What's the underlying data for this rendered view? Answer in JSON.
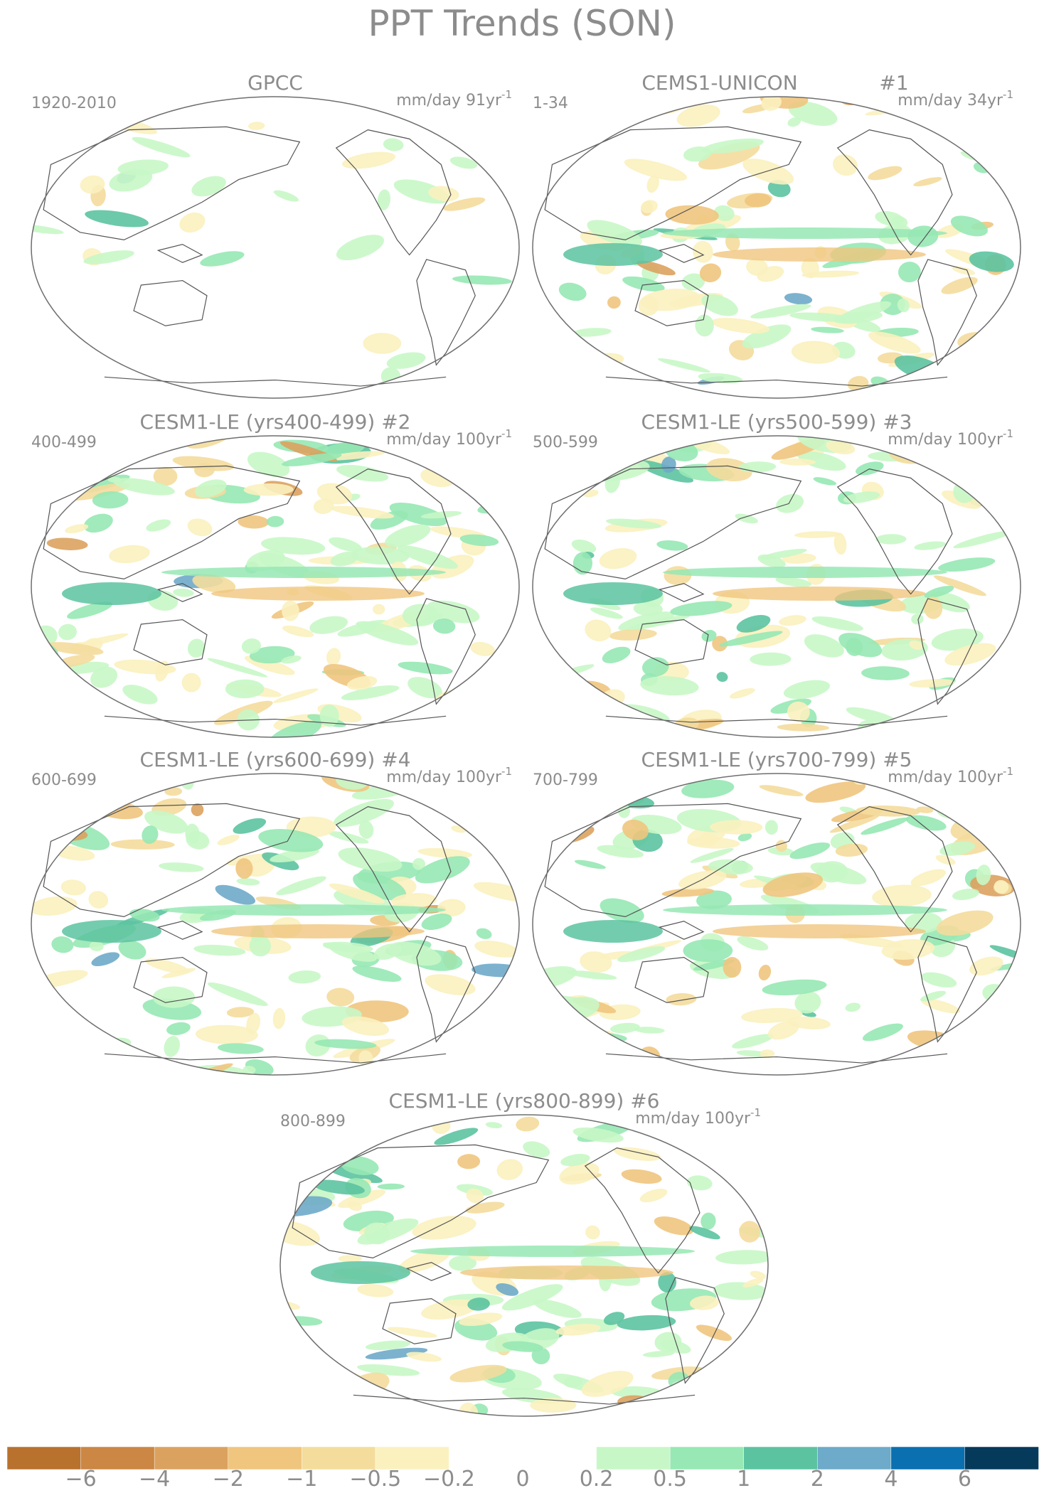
{
  "title": "PPT Trends (SON)",
  "panels": [
    {
      "name": "GPCC",
      "number": "",
      "period": "1920-2010",
      "units": "mm/day 91yr",
      "exponent": "-1"
    },
    {
      "name": "CEMS1-UNICON",
      "number": "#1",
      "period": "1-34",
      "units": "mm/day 34yr",
      "exponent": "-1"
    },
    {
      "name": "CESM1-LE (yrs400-499)",
      "number": "#2",
      "period": "400-499",
      "units": "mm/day 100yr",
      "exponent": "-1"
    },
    {
      "name": "CESM1-LE (yrs500-599)",
      "number": "#3",
      "period": "500-599",
      "units": "mm/day 100yr",
      "exponent": "-1"
    },
    {
      "name": "CESM1-LE (yrs600-699)",
      "number": "#4",
      "period": "600-699",
      "units": "mm/day 100yr",
      "exponent": "-1"
    },
    {
      "name": "CESM1-LE (yrs700-799)",
      "number": "#5",
      "period": "700-799",
      "units": "mm/day 100yr",
      "exponent": "-1"
    },
    {
      "name": "CESM1-LE (yrs800-899)",
      "number": "#6",
      "period": "800-899",
      "units": "mm/day 100yr",
      "exponent": "-1"
    }
  ],
  "colorbar": {
    "colors": [
      "#b8722e",
      "#cb8743",
      "#dba25f",
      "#f0c57e",
      "#f4dc9c",
      "#fbf1bf",
      "#ffffff",
      "#ffffff",
      "#c8f7c7",
      "#97e8b4",
      "#5cc3a0",
      "#6eaac9",
      "#0b70b0",
      "#053a5b"
    ],
    "labels": [
      "−6",
      "−4",
      "−2",
      "−1",
      "−0.5",
      "−0.2",
      "0",
      "0.2",
      "0.5",
      "1",
      "2",
      "4",
      "6"
    ]
  }
}
